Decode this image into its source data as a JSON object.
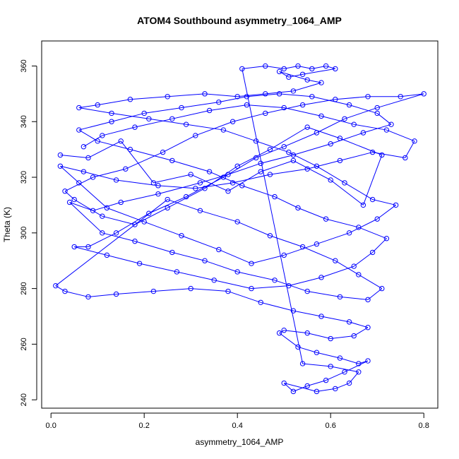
{
  "chart_data": {
    "type": "scatter",
    "title": "ATOM4 Southbound asymmetry_1064_AMP",
    "xlabel": "asymmetry_1064_AMP",
    "ylabel": "Theta (K)",
    "xlim": [
      -0.02,
      0.83
    ],
    "ylim": [
      237,
      369
    ],
    "x_ticks": [
      0.0,
      0.2,
      0.4,
      0.6,
      0.8
    ],
    "y_ticks": [
      240,
      260,
      280,
      300,
      320,
      340,
      360
    ],
    "x_tick_labels": [
      "0.0",
      "0.2",
      "0.4",
      "0.6",
      "0.8"
    ],
    "y_tick_labels": [
      "240",
      "260",
      "280",
      "300",
      "320",
      "340",
      "360"
    ],
    "grid": false,
    "legend": "none",
    "marker": "open-circle",
    "connected": true,
    "color": "#0000ff",
    "series": [
      {
        "points": [
          [
            0.02,
            328
          ],
          [
            0.08,
            327
          ],
          [
            0.15,
            333
          ],
          [
            0.22,
            318
          ],
          [
            0.3,
            321
          ],
          [
            0.38,
            315
          ],
          [
            0.45,
            322
          ],
          [
            0.52,
            326
          ],
          [
            0.6,
            319
          ],
          [
            0.67,
            310
          ],
          [
            0.71,
            328
          ],
          [
            0.62,
            334
          ],
          [
            0.55,
            338
          ],
          [
            0.47,
            330
          ],
          [
            0.4,
            324
          ],
          [
            0.33,
            316
          ],
          [
            0.25,
            309
          ],
          [
            0.18,
            303
          ],
          [
            0.11,
            306
          ],
          [
            0.05,
            312
          ],
          [
            0.03,
            315
          ],
          [
            0.09,
            320
          ],
          [
            0.16,
            323
          ],
          [
            0.24,
            329
          ],
          [
            0.31,
            335
          ],
          [
            0.39,
            340
          ],
          [
            0.46,
            343
          ],
          [
            0.54,
            346
          ],
          [
            0.61,
            348
          ],
          [
            0.68,
            349
          ],
          [
            0.75,
            349
          ],
          [
            0.8,
            350
          ],
          [
            0.7,
            345
          ],
          [
            0.63,
            341
          ],
          [
            0.57,
            336
          ],
          [
            0.5,
            331
          ],
          [
            0.44,
            327
          ],
          [
            0.37,
            320
          ],
          [
            0.29,
            313
          ],
          [
            0.21,
            307
          ],
          [
            0.14,
            300
          ],
          [
            0.08,
            295
          ],
          [
            0.05,
            295
          ],
          [
            0.12,
            292
          ],
          [
            0.19,
            289
          ],
          [
            0.27,
            286
          ],
          [
            0.35,
            283
          ],
          [
            0.43,
            280
          ],
          [
            0.51,
            281
          ],
          [
            0.58,
            284
          ],
          [
            0.65,
            288
          ],
          [
            0.69,
            293
          ],
          [
            0.72,
            298
          ],
          [
            0.66,
            302
          ],
          [
            0.59,
            305
          ],
          [
            0.53,
            309
          ],
          [
            0.48,
            313
          ],
          [
            0.41,
            317
          ],
          [
            0.34,
            322
          ],
          [
            0.26,
            326
          ],
          [
            0.17,
            330
          ],
          [
            0.1,
            333
          ],
          [
            0.06,
            337
          ],
          [
            0.13,
            340
          ],
          [
            0.2,
            343
          ],
          [
            0.28,
            345
          ],
          [
            0.36,
            347
          ],
          [
            0.42,
            349
          ],
          [
            0.49,
            350
          ],
          [
            0.56,
            349
          ],
          [
            0.64,
            346
          ],
          [
            0.7,
            343
          ],
          [
            0.73,
            339
          ],
          [
            0.67,
            336
          ],
          [
            0.6,
            332
          ],
          [
            0.52,
            328
          ],
          [
            0.45,
            325
          ],
          [
            0.38,
            321
          ],
          [
            0.32,
            318
          ],
          [
            0.23,
            314
          ],
          [
            0.15,
            311
          ],
          [
            0.09,
            308
          ],
          [
            0.04,
            311
          ],
          [
            0.11,
            300
          ],
          [
            0.18,
            297
          ],
          [
            0.26,
            293
          ],
          [
            0.33,
            290
          ],
          [
            0.4,
            286
          ],
          [
            0.48,
            283
          ],
          [
            0.55,
            279
          ],
          [
            0.62,
            277
          ],
          [
            0.68,
            276
          ],
          [
            0.71,
            280
          ],
          [
            0.66,
            285
          ],
          [
            0.61,
            290
          ],
          [
            0.54,
            295
          ],
          [
            0.47,
            299
          ],
          [
            0.4,
            304
          ],
          [
            0.32,
            308
          ],
          [
            0.25,
            312
          ],
          [
            0.01,
            281
          ],
          [
            0.03,
            279
          ],
          [
            0.08,
            277
          ],
          [
            0.14,
            278
          ],
          [
            0.22,
            279
          ],
          [
            0.3,
            280
          ],
          [
            0.38,
            279
          ],
          [
            0.45,
            275
          ],
          [
            0.52,
            272
          ],
          [
            0.58,
            270
          ],
          [
            0.64,
            268
          ],
          [
            0.68,
            266
          ],
          [
            0.65,
            263
          ],
          [
            0.6,
            262
          ],
          [
            0.55,
            264
          ],
          [
            0.5,
            265
          ],
          [
            0.49,
            264
          ],
          [
            0.53,
            259
          ],
          [
            0.57,
            257
          ],
          [
            0.62,
            255
          ],
          [
            0.66,
            253
          ],
          [
            0.68,
            254
          ],
          [
            0.63,
            250
          ],
          [
            0.59,
            247
          ],
          [
            0.55,
            245
          ],
          [
            0.52,
            243
          ],
          [
            0.5,
            246
          ],
          [
            0.57,
            243
          ],
          [
            0.61,
            244
          ],
          [
            0.64,
            246
          ],
          [
            0.66,
            250
          ],
          [
            0.6,
            252
          ],
          [
            0.54,
            253
          ],
          [
            0.41,
            359
          ],
          [
            0.46,
            360
          ],
          [
            0.5,
            359
          ],
          [
            0.53,
            360
          ],
          [
            0.56,
            359
          ],
          [
            0.59,
            360
          ],
          [
            0.61,
            359
          ],
          [
            0.54,
            357
          ],
          [
            0.51,
            356
          ],
          [
            0.49,
            358
          ],
          [
            0.55,
            355
          ],
          [
            0.58,
            354
          ],
          [
            0.52,
            351
          ],
          [
            0.46,
            350
          ],
          [
            0.4,
            349
          ],
          [
            0.33,
            350
          ],
          [
            0.25,
            349
          ],
          [
            0.17,
            348
          ],
          [
            0.1,
            346
          ],
          [
            0.06,
            345
          ],
          [
            0.13,
            343
          ],
          [
            0.21,
            341
          ],
          [
            0.29,
            339
          ],
          [
            0.37,
            337
          ],
          [
            0.44,
            333
          ],
          [
            0.51,
            329
          ],
          [
            0.57,
            324
          ],
          [
            0.63,
            318
          ],
          [
            0.69,
            312
          ],
          [
            0.74,
            310
          ],
          [
            0.7,
            305
          ],
          [
            0.64,
            300
          ],
          [
            0.57,
            296
          ],
          [
            0.5,
            292
          ],
          [
            0.43,
            289
          ],
          [
            0.36,
            294
          ],
          [
            0.28,
            299
          ],
          [
            0.2,
            304
          ],
          [
            0.12,
            309
          ],
          [
            0.06,
            318
          ],
          [
            0.02,
            324
          ],
          [
            0.07,
            322
          ],
          [
            0.14,
            319
          ],
          [
            0.23,
            317
          ],
          [
            0.31,
            316
          ],
          [
            0.39,
            318
          ],
          [
            0.47,
            321
          ],
          [
            0.55,
            323
          ],
          [
            0.62,
            326
          ],
          [
            0.69,
            329
          ],
          [
            0.76,
            327
          ],
          [
            0.78,
            333
          ],
          [
            0.72,
            337
          ],
          [
            0.65,
            339
          ],
          [
            0.58,
            342
          ],
          [
            0.5,
            345
          ],
          [
            0.42,
            346
          ],
          [
            0.34,
            344
          ],
          [
            0.26,
            341
          ],
          [
            0.18,
            338
          ],
          [
            0.11,
            335
          ],
          [
            0.07,
            331
          ]
        ]
      }
    ]
  }
}
